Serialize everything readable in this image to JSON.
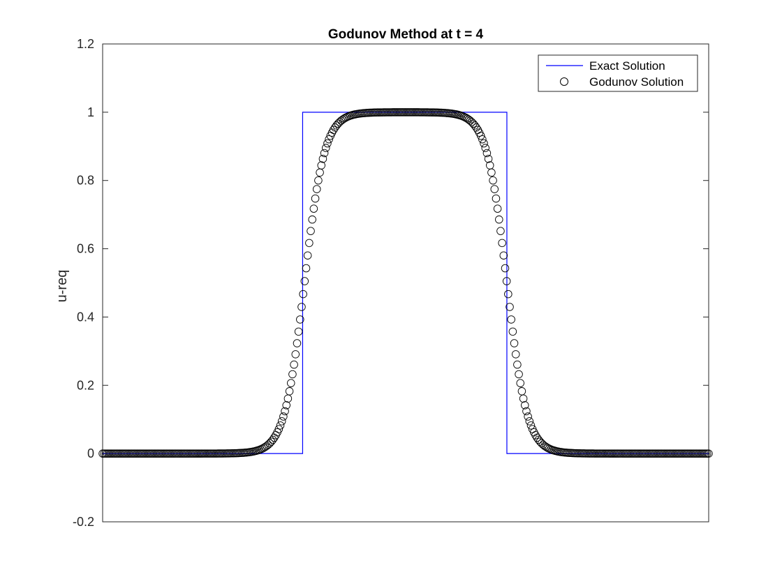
{
  "chart_data": {
    "type": "line",
    "title": "Godunov Method at t = 4",
    "xlabel": "",
    "ylabel": "u-req",
    "xlim": [
      0,
      1
    ],
    "ylim": [
      -0.2,
      1.2
    ],
    "yticks": [
      -0.2,
      0,
      0.2,
      0.4,
      0.6,
      0.8,
      1,
      1.2
    ],
    "ytick_labels": [
      "-0.2",
      "0",
      "0.2",
      "0.4",
      "0.6",
      "0.8",
      "1",
      "1.2"
    ],
    "xticks": [],
    "grid": false,
    "legend_position": "top-right",
    "series": [
      {
        "name": "Exact Solution",
        "style": "line",
        "color": "#0000ff",
        "x": [
          0,
          0.33,
          0.33,
          0.667,
          0.667,
          1
        ],
        "y": [
          0,
          0,
          1,
          1,
          0,
          0
        ]
      },
      {
        "name": "Godunov Solution",
        "style": "markers",
        "marker": "circle-open",
        "color": "#000000",
        "n_points": 400,
        "profile": {
          "left_edge": 0.333,
          "right_edge": 0.667,
          "smear_width": 0.03
        }
      }
    ]
  }
}
